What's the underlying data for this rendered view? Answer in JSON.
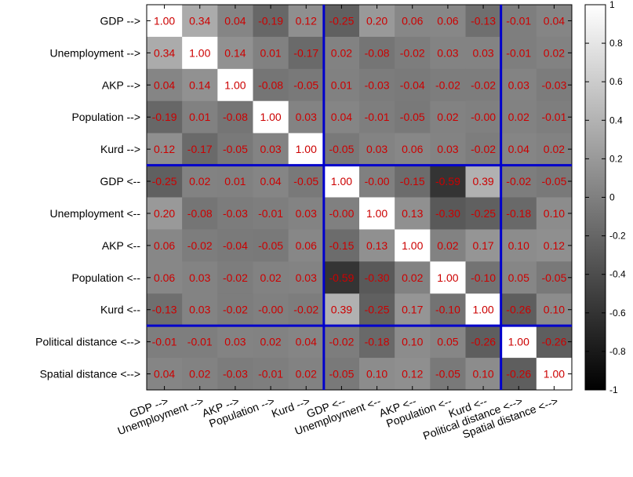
{
  "chart_data": {
    "type": "heatmap",
    "title": "",
    "xlabel": "",
    "ylabel": "",
    "row_labels": [
      "GDP -->",
      "Unemployment -->",
      "AKP -->",
      "Population -->",
      "Kurd -->",
      "GDP <--",
      "Unemployment <--",
      "AKP <--",
      "Population <--",
      "Kurd <--",
      "Political distance <-->",
      "Spatial distance <-->"
    ],
    "column_labels": [
      "GDP -->",
      "Unemployment -->",
      "AKP -->",
      "Population -->",
      "Kurd -->",
      "GDP <--",
      "Unemployment <--",
      "AKP <--",
      "Population <--",
      "Kurd <--",
      "Political distance <-->",
      "Spatial distance <-->"
    ],
    "values": [
      [
        1.0,
        0.34,
        0.04,
        -0.19,
        0.12,
        -0.25,
        0.2,
        0.06,
        0.06,
        -0.13,
        -0.01,
        0.04
      ],
      [
        0.34,
        1.0,
        0.14,
        0.01,
        -0.17,
        0.02,
        -0.08,
        -0.02,
        0.03,
        0.03,
        -0.01,
        0.02
      ],
      [
        0.04,
        0.14,
        1.0,
        -0.08,
        -0.05,
        0.01,
        -0.03,
        -0.04,
        -0.02,
        -0.02,
        0.03,
        -0.03
      ],
      [
        -0.19,
        0.01,
        -0.08,
        1.0,
        0.03,
        0.04,
        -0.01,
        -0.05,
        0.02,
        -0.0,
        0.02,
        -0.01
      ],
      [
        0.12,
        -0.17,
        -0.05,
        0.03,
        1.0,
        -0.05,
        0.03,
        0.06,
        0.03,
        -0.02,
        0.04,
        0.02
      ],
      [
        -0.25,
        0.02,
        0.01,
        0.04,
        -0.05,
        1.0,
        -0.0,
        -0.15,
        -0.59,
        0.39,
        -0.02,
        -0.05
      ],
      [
        0.2,
        -0.08,
        -0.03,
        -0.01,
        0.03,
        -0.0,
        1.0,
        0.13,
        -0.3,
        -0.25,
        -0.18,
        0.1
      ],
      [
        0.06,
        -0.02,
        -0.04,
        -0.05,
        0.06,
        -0.15,
        0.13,
        1.0,
        0.02,
        0.17,
        0.1,
        0.12
      ],
      [
        0.06,
        0.03,
        -0.02,
        0.02,
        0.03,
        -0.59,
        -0.3,
        0.02,
        1.0,
        -0.1,
        0.05,
        -0.05
      ],
      [
        -0.13,
        0.03,
        -0.02,
        -0.0,
        -0.02,
        0.39,
        -0.25,
        0.17,
        -0.1,
        1.0,
        -0.26,
        0.1
      ],
      [
        -0.01,
        -0.01,
        0.03,
        0.02,
        0.04,
        -0.02,
        -0.18,
        0.1,
        0.05,
        -0.26,
        1.0,
        -0.26
      ],
      [
        0.04,
        0.02,
        -0.03,
        -0.01,
        0.02,
        -0.05,
        0.1,
        0.12,
        -0.05,
        0.1,
        -0.26,
        1.0
      ]
    ],
    "value_format": "2 decimals",
    "colormap": "gray",
    "clim": [
      -1,
      1
    ],
    "colorbar_ticks": [
      1,
      0.8,
      0.6,
      0.4,
      0.2,
      0,
      -0.2,
      -0.4,
      -0.6,
      -0.8,
      -1
    ],
    "colorbar_position": "right",
    "divider_after_index": [
      4,
      9
    ],
    "divider_color": "#0000cc",
    "text_color": "#cc0000",
    "grid": false
  }
}
